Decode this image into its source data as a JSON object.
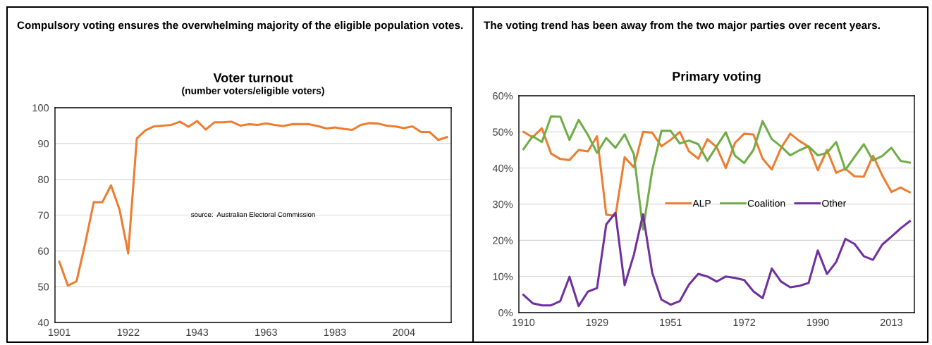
{
  "chart_data": [
    {
      "type": "line",
      "title": "Voter turnout",
      "subtitle": "(number voters/eligible voters)",
      "annotations": [
        "Compulsory voting ensures the overwhelming majority of the eligible population votes.",
        "source:  Australian Electoral Commission"
      ],
      "categories": [
        "1901",
        null,
        null,
        null,
        null,
        null,
        null,
        null,
        "1922",
        null,
        null,
        null,
        null,
        null,
        null,
        null,
        "1943",
        null,
        null,
        null,
        null,
        null,
        null,
        null,
        "1963",
        null,
        null,
        null,
        null,
        null,
        null,
        null,
        "1983",
        null,
        null,
        null,
        null,
        null,
        null,
        null,
        "2004",
        null,
        null,
        null,
        null,
        null
      ],
      "series": [
        {
          "color": "#ed7d31",
          "values": [
            57,
            50.3,
            51.5,
            62,
            73.6,
            73.6,
            78.3,
            71.5,
            59.3,
            91.4,
            93.7,
            94.8,
            95.0,
            95.2,
            96.1,
            94.7,
            96.3,
            93.9,
            95.9,
            95.9,
            96.1,
            95.0,
            95.4,
            95.2,
            95.6,
            95.2,
            94.9,
            95.4,
            95.4,
            95.4,
            94.9,
            94.2,
            94.5,
            94.1,
            93.8,
            95.2,
            95.7,
            95.6,
            95.0,
            94.8,
            94.3,
            94.8,
            93.2,
            93.2,
            91.0,
            91.8
          ]
        }
      ],
      "ylim": [
        40,
        100
      ],
      "yticks": [
        40,
        50,
        60,
        70,
        80,
        90,
        100
      ],
      "grid": "y",
      "marker": "none",
      "line_style": "solid"
    },
    {
      "type": "line",
      "title": "Primary voting",
      "annotations": [
        "The voting trend has been away from the two major parties over recent years."
      ],
      "categories": [
        "1910",
        null,
        null,
        null,
        null,
        null,
        null,
        null,
        "1929",
        null,
        null,
        null,
        null,
        null,
        null,
        null,
        "1951",
        null,
        null,
        null,
        null,
        null,
        null,
        null,
        "1972",
        null,
        null,
        null,
        null,
        null,
        null,
        null,
        "1990",
        null,
        null,
        null,
        null,
        null,
        null,
        null,
        "2013",
        null,
        null
      ],
      "series": [
        {
          "name": "ALP",
          "color": "#ed7d31",
          "values": [
            50,
            48.5,
            51,
            44,
            42.5,
            42.2,
            45,
            44.6,
            48.8,
            27.1,
            26.8,
            43,
            40.2,
            50,
            49.8,
            46,
            47.8,
            50,
            44.6,
            42.6,
            48,
            45.8,
            40,
            47,
            49.5,
            49.3,
            42.6,
            39.6,
            45.5,
            49.5,
            47.5,
            45.9,
            39.4,
            45,
            38.7,
            39.8,
            37.7,
            37.6,
            43.4,
            38,
            33.4,
            34.6,
            33.3
          ]
        },
        {
          "name": "Coalition",
          "color": "#70ad47",
          "values": [
            45.2,
            48.8,
            47.2,
            54.3,
            54.2,
            47.8,
            53.3,
            49.2,
            44.2,
            48.3,
            45.6,
            49.3,
            43.8,
            23,
            39.4,
            50.3,
            50.3,
            46.8,
            47.6,
            46.6,
            42,
            46,
            49.9,
            43.4,
            41.4,
            45,
            53,
            48,
            46,
            43.5,
            44.9,
            46,
            43.5,
            44.2,
            47.2,
            39.5,
            43.1,
            46.6,
            42.1,
            43.3,
            45.6,
            42,
            41.5
          ]
        },
        {
          "name": "Other",
          "color": "#7030a0",
          "values": [
            4.9,
            2.6,
            2,
            2,
            3.2,
            9.9,
            1.8,
            5.8,
            6.8,
            24.4,
            27.6,
            7.6,
            16,
            27.2,
            11,
            3.6,
            2.2,
            3.2,
            7.8,
            10.7,
            10,
            8.6,
            10,
            9.6,
            9,
            5.9,
            4,
            12.2,
            8.6,
            7,
            7.4,
            8.2,
            17.2,
            10.7,
            14,
            20.4,
            19,
            15.6,
            14.6,
            18.8,
            21,
            23.3,
            25.3
          ]
        }
      ],
      "ylim": [
        0,
        60
      ],
      "yticks": [
        {
          "value": 0,
          "label": "0%"
        },
        {
          "value": 10,
          "label": "10%"
        },
        {
          "value": 20,
          "label": "20%"
        },
        {
          "value": 30,
          "label": "30%"
        },
        {
          "value": 40,
          "label": "40%"
        },
        {
          "value": 50,
          "label": "50%"
        },
        {
          "value": 60,
          "label": "60%"
        }
      ],
      "grid": "y",
      "legend": "center",
      "marker": "none",
      "line_style": "solid"
    }
  ]
}
